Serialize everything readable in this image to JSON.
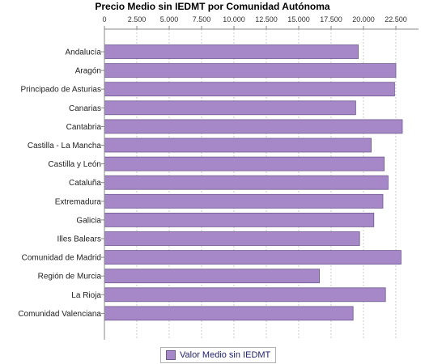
{
  "chart_data": {
    "type": "bar",
    "orientation": "horizontal",
    "title": "Precio Medio sin IEDMT por Comunidad Autónoma",
    "categories": [
      "Andalucía",
      "Aragón",
      "Principado de Asturias",
      "Canarias",
      "Cantabria",
      "Castilla - La Mancha",
      "Castilla y León",
      "Cataluña",
      "Extremadura",
      "Galicia",
      "Illes Balears",
      "Comunidad de Madrid",
      "Región de Murcia",
      "La Rioja",
      "Comunidad Valenciana"
    ],
    "series": [
      {
        "name": "Valor Medio sin IEDMT",
        "values": [
          19600,
          22500,
          22400,
          19400,
          23000,
          20600,
          21600,
          21900,
          21500,
          20800,
          19700,
          22900,
          16600,
          21700,
          19200
        ]
      }
    ],
    "xlim": [
      0,
      24000
    ],
    "xticks": [
      "0",
      "2.500",
      "5.000",
      "7.500",
      "10.000",
      "12.500",
      "15.000",
      "17.500",
      "20.000",
      "22.500"
    ],
    "xtick_values": [
      0,
      2500,
      5000,
      7500,
      10000,
      12500,
      15000,
      17500,
      20000,
      22500
    ],
    "xaxis_position": "top",
    "grid": true,
    "legend_position": "bottom",
    "colors": {
      "bar": "#a687c8",
      "bar_border": "#6f5a8e",
      "legend_text": "#1f1f6e"
    }
  }
}
